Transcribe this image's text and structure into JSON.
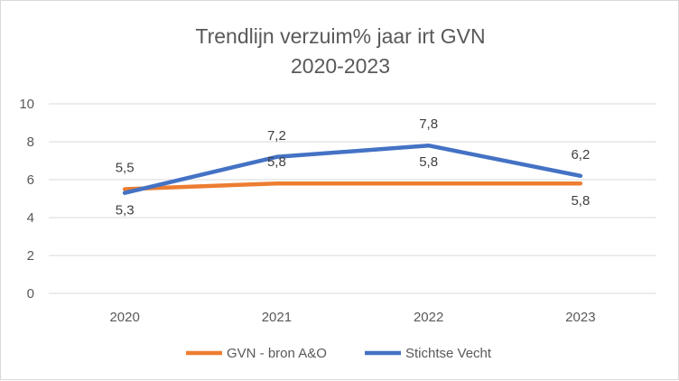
{
  "chart_data": {
    "type": "line",
    "title_lines": [
      "Trendlijn verzuim% jaar irt GVN",
      "2020-2023"
    ],
    "categories": [
      "2020",
      "2021",
      "2022",
      "2023"
    ],
    "ylim": [
      0,
      10
    ],
    "yticks": [
      "0",
      "2",
      "4",
      "6",
      "8",
      "10"
    ],
    "grid": true,
    "legend": "bottom",
    "series": [
      {
        "name": "GVN - bron A&O",
        "values": [
          5.5,
          5.8,
          5.8,
          5.8
        ],
        "labels": [
          "5,5",
          "5,8",
          "5,8",
          "5,8"
        ],
        "color": "#ED7D31"
      },
      {
        "name": "Stichtse Vecht",
        "values": [
          5.3,
          7.2,
          7.8,
          6.2
        ],
        "labels": [
          "5,3",
          "7,2",
          "7,8",
          "6,2"
        ],
        "color": "#4472C4"
      }
    ]
  }
}
